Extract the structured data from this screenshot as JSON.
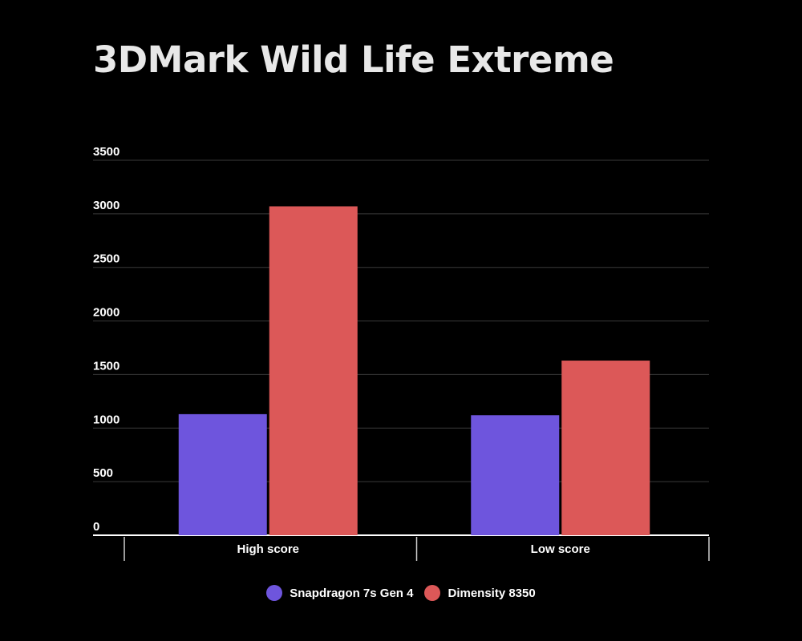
{
  "chart_data": {
    "type": "bar",
    "title": "3DMark Wild Life Extreme",
    "categories": [
      "High score",
      "Low score"
    ],
    "series": [
      {
        "name": "Snapdragon 7s Gen 4",
        "values": [
          1130,
          1120
        ],
        "color": "#6e55dd"
      },
      {
        "name": "Dimensity 8350",
        "values": [
          3070,
          1630
        ],
        "color": "#dc5858"
      }
    ],
    "ylim": [
      0,
      3500
    ],
    "yticks": [
      "0",
      "500",
      "1000",
      "1500",
      "2000",
      "2500",
      "3000",
      "3500"
    ],
    "grid": true,
    "legend_position": "bottom-center",
    "background": "#000000"
  }
}
